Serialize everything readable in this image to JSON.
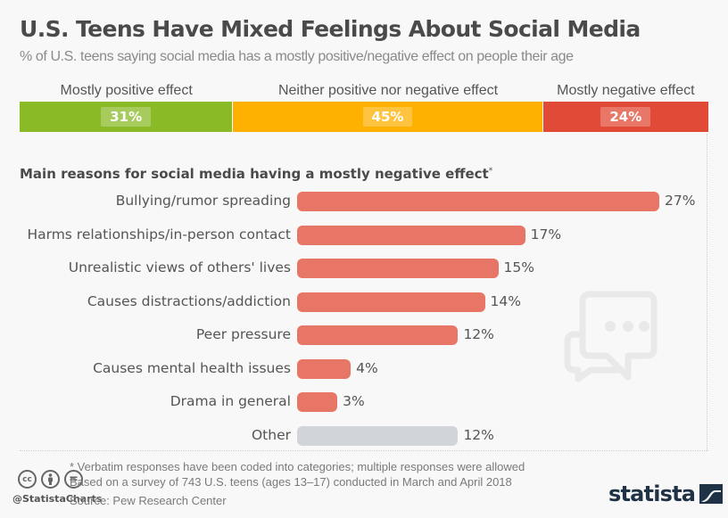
{
  "header": {
    "title": "U.S. Teens Have Mixed Feelings About Social Media",
    "subtitle": "% of U.S. teens saying social media has a mostly positive/negative effect on people their age"
  },
  "chart_data": [
    {
      "type": "bar",
      "orientation": "horizontal-stacked",
      "title": "",
      "categories": [
        "Mostly positive effect",
        "Neither positive nor negative effect",
        "Mostly negative effect"
      ],
      "values": [
        31,
        45,
        24
      ],
      "value_labels": [
        "31%",
        "45%",
        "24%"
      ],
      "colors": [
        "#8aba26",
        "#feb100",
        "#e04a36"
      ],
      "unit": "%"
    },
    {
      "type": "bar",
      "orientation": "horizontal",
      "title": "Main reasons for social media having a mostly negative effect",
      "title_marker": "*",
      "categories": [
        "Bullying/rumor spreading",
        "Harms relationships/in-person contact",
        "Unrealistic views of others' lives",
        "Causes distractions/addiction",
        "Peer pressure",
        "Causes mental health issues",
        "Drama in general",
        "Other"
      ],
      "values": [
        27,
        17,
        15,
        14,
        12,
        4,
        3,
        12
      ],
      "value_labels": [
        "27%",
        "17%",
        "15%",
        "14%",
        "12%",
        "4%",
        "3%",
        "12%"
      ],
      "colors": [
        "#e87667",
        "#e87667",
        "#e87667",
        "#e87667",
        "#e87667",
        "#e87667",
        "#e87667",
        "#d1d5d9"
      ],
      "xlim": [
        0,
        27
      ],
      "unit": "%",
      "grid": false
    }
  ],
  "footer": {
    "note": "*  Verbatim responses have been coded into categories; multiple responses were allowed",
    "survey": "Based on a survey of 743 U.S. teens (ages 13–17) conducted in March and April 2018",
    "source": "Source: Pew Research Center",
    "handle": "@StatistaCharts",
    "license_icons": [
      "cc-icon",
      "by-icon",
      "nd-icon"
    ],
    "cc_labels": [
      "cc",
      "",
      "="
    ],
    "logo": "statista"
  }
}
